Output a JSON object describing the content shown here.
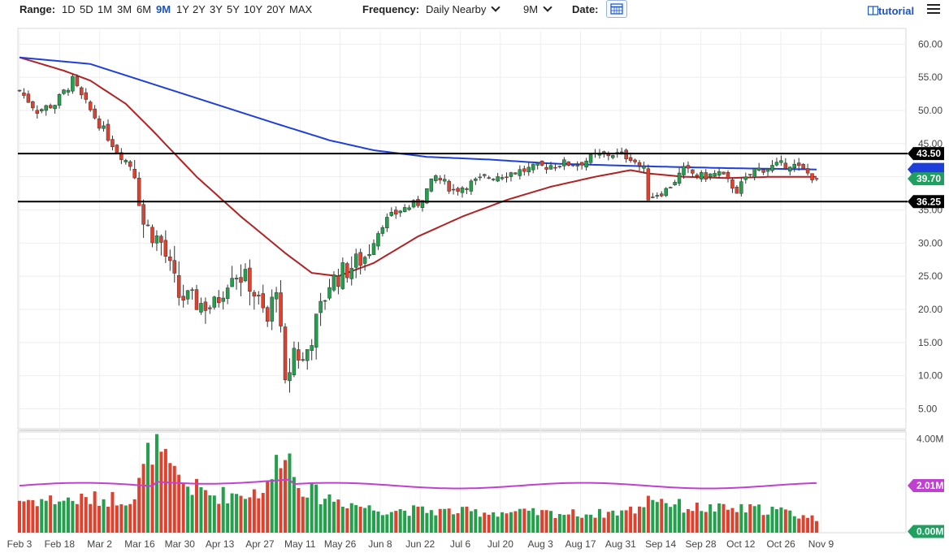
{
  "toolbar": {
    "range_label": "Range:",
    "ranges": [
      "1D",
      "5D",
      "1M",
      "3M",
      "6M",
      "9M",
      "1Y",
      "2Y",
      "3Y",
      "5Y",
      "10Y",
      "20Y",
      "MAX"
    ],
    "active_range": "9M",
    "frequency_label": "Frequency:",
    "frequency_value": "Daily Nearby",
    "period_value": "9M",
    "date_label": "Date:",
    "tutorial_label": "tutorial"
  },
  "colors": {
    "up": "#22a04b",
    "down": "#e0412e",
    "sma_short": "#b22222",
    "sma_long": "#1f3fdc",
    "vol_avg": "#c040d0",
    "level_line": "#000000",
    "price_tag": "#20a060",
    "sma_long_tag": "#1f3fdc"
  },
  "chart_data": {
    "type": "candlestick",
    "price_axis": {
      "ticks": [
        "60.00",
        "55.00",
        "50.00",
        "45.00",
        "40.00",
        "35.00",
        "30.00",
        "25.00",
        "20.00",
        "15.00",
        "10.00",
        "5.00"
      ],
      "ylim": [
        2,
        62
      ]
    },
    "volume_axis": {
      "ticks": [
        "4.00M",
        "2.01M",
        "0.00M"
      ],
      "ylim": [
        0,
        4.3
      ]
    },
    "x_ticks": [
      "Feb 3",
      "Feb 18",
      "Mar 2",
      "Mar 16",
      "Mar 30",
      "Apr 13",
      "Apr 27",
      "May 11",
      "May 26",
      "Jun 8",
      "Jun 22",
      "Jul 6",
      "Jul 20",
      "Aug 3",
      "Aug 17",
      "Aug 31",
      "Sep 14",
      "Sep 28",
      "Oct 12",
      "Oct 26",
      "Nov 9"
    ],
    "levels": [
      {
        "value": 43.5,
        "label": "43.50"
      },
      {
        "value": 36.25,
        "label": "36.25"
      }
    ],
    "last_price": {
      "value": 39.7,
      "label": "39.70"
    },
    "sma_long_last": 41.1,
    "volume_avg_label": "2.01M",
    "volume_zero_label": "0.00M",
    "keypoints": [
      [
        0,
        53
      ],
      [
        4,
        50
      ],
      [
        8,
        51
      ],
      [
        12,
        54.5
      ],
      [
        14,
        52
      ],
      [
        18,
        48
      ],
      [
        22,
        44
      ],
      [
        26,
        41
      ],
      [
        28,
        33
      ],
      [
        32,
        30
      ],
      [
        36,
        22
      ],
      [
        40,
        21
      ],
      [
        44,
        20.5
      ],
      [
        48,
        26
      ],
      [
        52,
        24
      ],
      [
        56,
        18
      ],
      [
        58,
        24
      ],
      [
        60,
        8
      ],
      [
        62,
        14
      ],
      [
        64,
        12
      ],
      [
        66,
        16
      ],
      [
        70,
        24
      ],
      [
        74,
        26
      ],
      [
        78,
        28
      ],
      [
        82,
        33
      ],
      [
        86,
        35
      ],
      [
        90,
        36
      ],
      [
        94,
        40
      ],
      [
        98,
        38
      ],
      [
        102,
        39
      ],
      [
        106,
        40
      ],
      [
        110,
        40.5
      ],
      [
        114,
        41
      ],
      [
        118,
        41.5
      ],
      [
        122,
        42
      ],
      [
        126,
        42
      ],
      [
        130,
        43
      ],
      [
        134,
        43.5
      ],
      [
        138,
        43
      ],
      [
        141,
        41
      ],
      [
        142,
        37
      ],
      [
        146,
        38
      ],
      [
        150,
        41
      ],
      [
        154,
        40
      ],
      [
        158,
        40.5
      ],
      [
        162,
        38
      ],
      [
        166,
        41
      ],
      [
        170,
        41.5
      ],
      [
        174,
        42
      ],
      [
        178,
        40.5
      ],
      [
        180,
        39.7
      ]
    ],
    "volume_keypoints": [
      [
        0,
        1.4
      ],
      [
        12,
        1.4
      ],
      [
        26,
        1.5
      ],
      [
        30,
        3.8
      ],
      [
        34,
        2.6
      ],
      [
        38,
        2.0
      ],
      [
        44,
        1.6
      ],
      [
        52,
        1.7
      ],
      [
        56,
        1.9
      ],
      [
        60,
        4.0
      ],
      [
        62,
        2.4
      ],
      [
        66,
        1.7
      ],
      [
        72,
        1.4
      ],
      [
        80,
        1.0
      ],
      [
        100,
        0.9
      ],
      [
        130,
        0.8
      ],
      [
        140,
        1.0
      ],
      [
        142,
        1.6
      ],
      [
        150,
        1.1
      ],
      [
        160,
        1.0
      ],
      [
        170,
        1.0
      ],
      [
        180,
        0.6
      ]
    ],
    "sma_short_keypoints": [
      [
        0,
        58
      ],
      [
        10,
        56
      ],
      [
        16,
        54.5
      ],
      [
        24,
        51
      ],
      [
        30,
        47
      ],
      [
        40,
        40
      ],
      [
        50,
        34
      ],
      [
        60,
        28.5
      ],
      [
        66,
        25.5
      ],
      [
        72,
        25
      ],
      [
        80,
        27
      ],
      [
        90,
        31
      ],
      [
        100,
        34
      ],
      [
        110,
        36.5
      ],
      [
        120,
        38.5
      ],
      [
        130,
        40
      ],
      [
        138,
        41
      ],
      [
        142,
        40.5
      ],
      [
        150,
        40
      ],
      [
        160,
        39.8
      ],
      [
        170,
        40
      ],
      [
        180,
        40
      ]
    ],
    "sma_long_keypoints": [
      [
        0,
        58
      ],
      [
        16,
        57
      ],
      [
        30,
        54
      ],
      [
        44,
        51
      ],
      [
        58,
        48
      ],
      [
        70,
        45.5
      ],
      [
        80,
        44
      ],
      [
        92,
        43
      ],
      [
        106,
        42.6
      ],
      [
        120,
        42
      ],
      [
        140,
        41.6
      ],
      [
        160,
        41.3
      ],
      [
        180,
        41.1
      ]
    ],
    "n_days": 181
  }
}
